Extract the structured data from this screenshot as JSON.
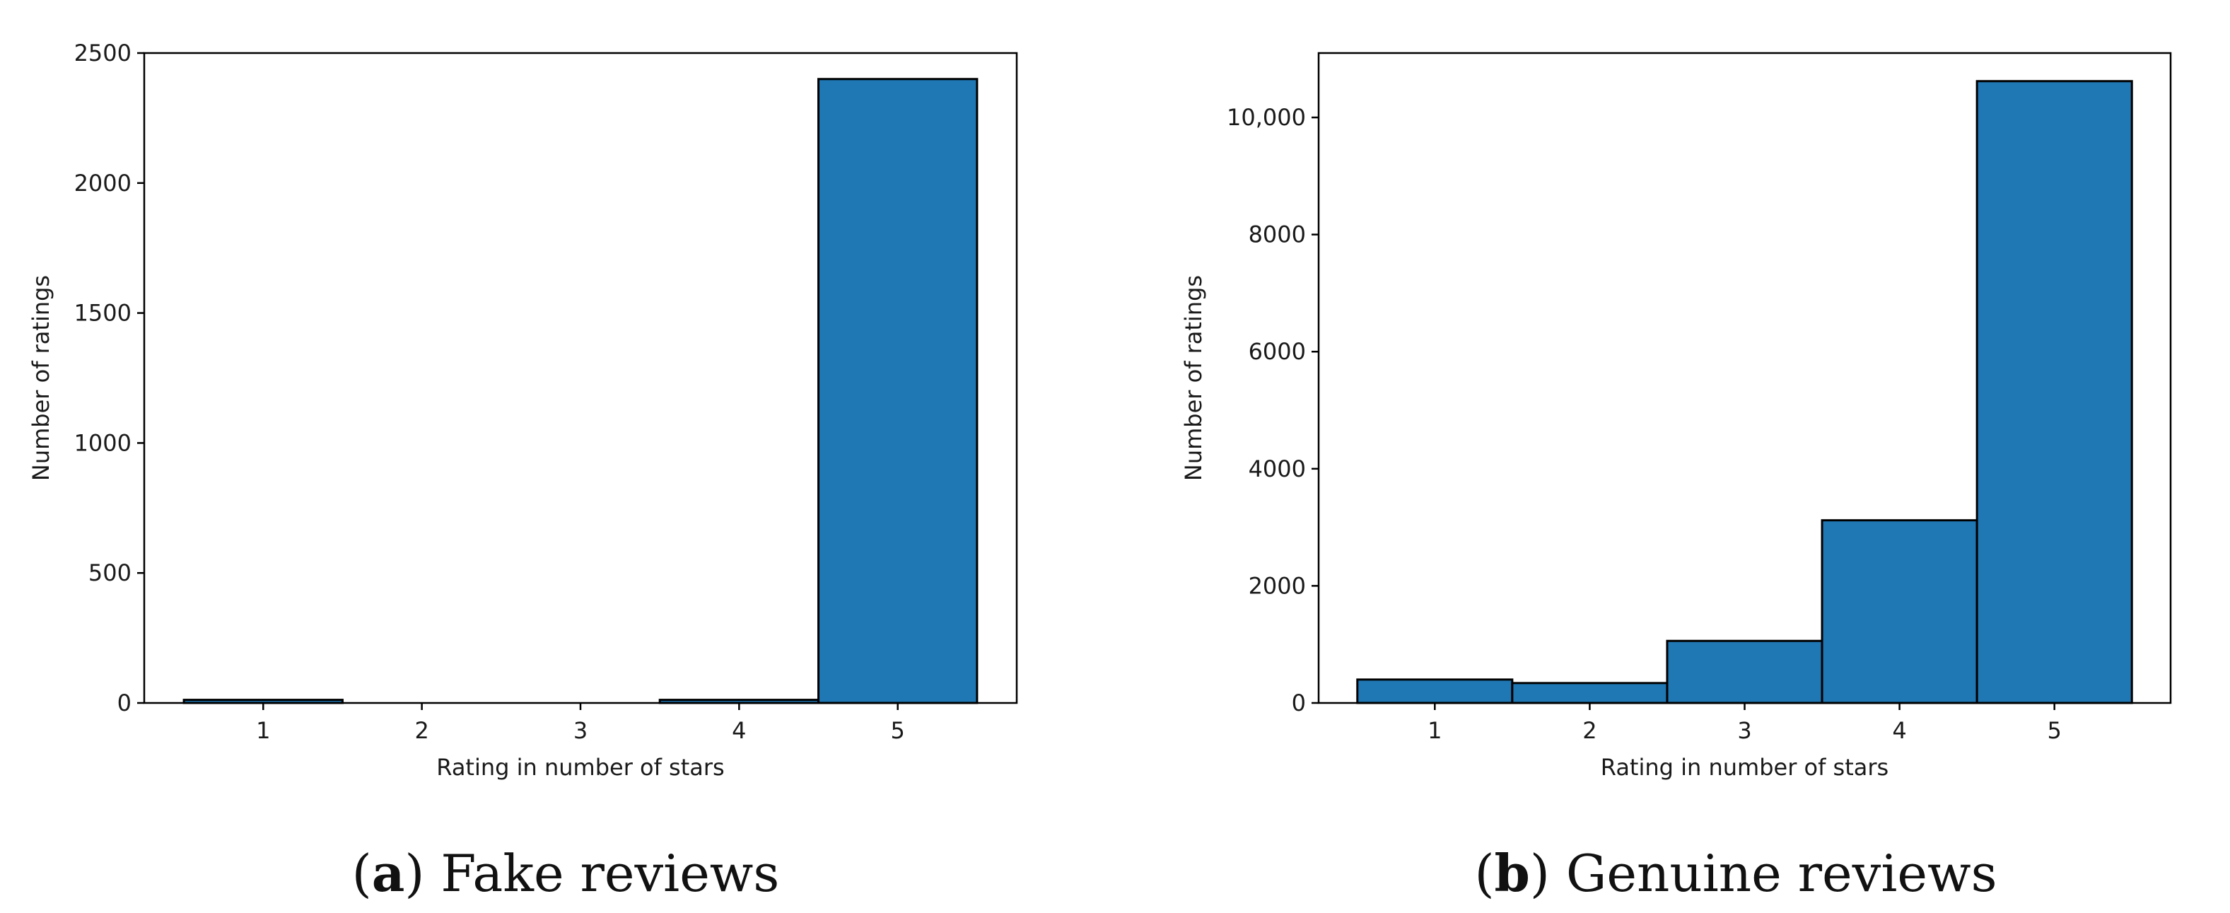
{
  "chart_data": [
    {
      "type": "bar",
      "categories": [
        "1",
        "2",
        "3",
        "4",
        "5"
      ],
      "values": [
        12,
        0,
        0,
        12,
        2400
      ],
      "xlabel": "Rating in number of stars",
      "ylabel": "Number of ratings",
      "ylim": [
        0,
        2500
      ],
      "yticks": [
        0,
        500,
        1000,
        1500,
        2000,
        2500
      ],
      "ytick_labels": [
        "0",
        "500",
        "1000",
        "1500",
        "2000",
        "2500"
      ],
      "caption_letter": "a",
      "caption_text": "Fake reviews",
      "bar_color": "#1f77b4",
      "grid": false
    },
    {
      "type": "bar",
      "categories": [
        "1",
        "2",
        "3",
        "4",
        "5"
      ],
      "values": [
        400,
        340,
        1060,
        3120,
        10620
      ],
      "xlabel": "Rating in number of stars",
      "ylabel": "Number of ratings",
      "ylim": [
        0,
        11100
      ],
      "yticks": [
        0,
        2000,
        4000,
        6000,
        8000,
        10000
      ],
      "ytick_labels": [
        "0",
        "2000",
        "4000",
        "6000",
        "8000",
        "10,000"
      ],
      "caption_letter": "b",
      "caption_text": "Genuine reviews",
      "bar_color": "#1f77b4",
      "grid": false
    }
  ]
}
